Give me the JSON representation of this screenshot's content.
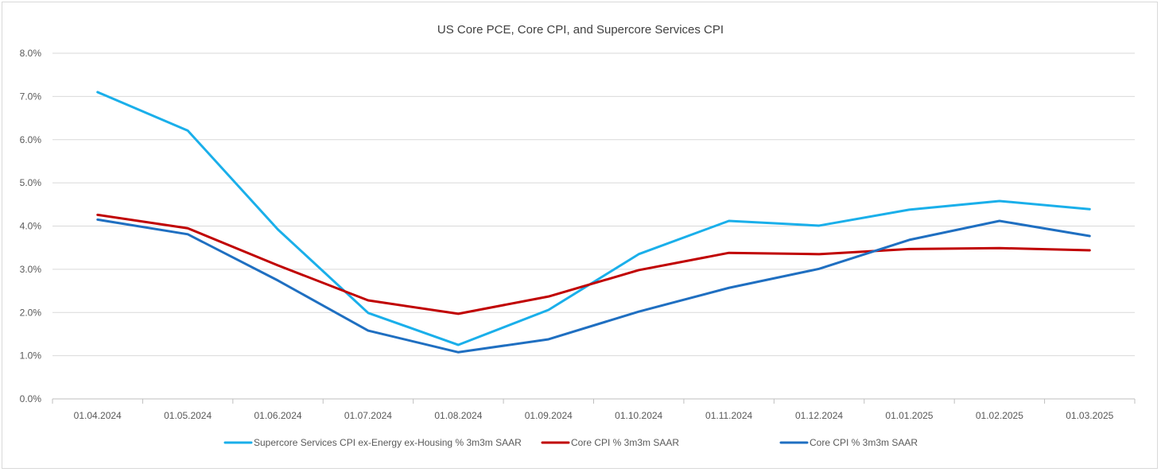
{
  "chart_data": {
    "type": "line",
    "title": "US Core PCE, Core CPI, and Supercore Services CPI",
    "xlabel": "",
    "ylabel": "",
    "categories": [
      "01.04.2024",
      "01.05.2024",
      "01.06.2024",
      "01.07.2024",
      "01.08.2024",
      "01.09.2024",
      "01.10.2024",
      "01.11.2024",
      "01.12.2024",
      "01.01.2025",
      "01.02.2025",
      "01.03.2025"
    ],
    "ylim": [
      0,
      8
    ],
    "yticks": [
      "0.0%",
      "1.0%",
      "2.0%",
      "3.0%",
      "4.0%",
      "5.0%",
      "6.0%",
      "7.0%",
      "8.0%"
    ],
    "grid": true,
    "legend_position": "bottom",
    "series": [
      {
        "name": "Supercore Services CPI ex-Energy ex-Housing % 3m3m SAAR",
        "color": "#1AAFEA",
        "values": [
          7.1,
          6.21,
          3.92,
          1.99,
          1.25,
          2.06,
          3.35,
          4.12,
          4.01,
          4.38,
          4.58,
          4.39
        ]
      },
      {
        "name": "Core CPI % 3m3m SAAR",
        "color": "#C00000",
        "values": [
          4.26,
          3.95,
          3.09,
          2.28,
          1.97,
          2.37,
          2.98,
          3.38,
          3.35,
          3.47,
          3.49,
          3.44
        ]
      },
      {
        "name": "Core CPI % 3m3m SAAR",
        "color": "#1F6FC1",
        "values": [
          4.15,
          3.81,
          2.74,
          1.58,
          1.08,
          1.38,
          2.02,
          2.57,
          3.01,
          3.68,
          4.12,
          3.77
        ]
      }
    ]
  }
}
